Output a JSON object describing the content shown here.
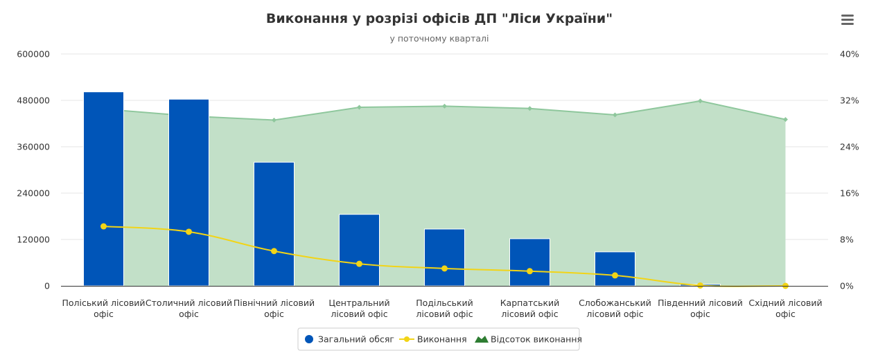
{
  "chart_data": {
    "type": "bar",
    "title": "Виконання у розрізі офісів ДП \"Ліси України\"",
    "subtitle": "у поточному кварталі",
    "categories": [
      [
        "Поліський лісовий",
        "офіс"
      ],
      [
        "Столичний лісовий",
        "офіс"
      ],
      [
        "Північний лісовий",
        "офіс"
      ],
      [
        "Центральний",
        "лісовий офіс"
      ],
      [
        "Подільський",
        "лісовий офіс"
      ],
      [
        "Карпатський",
        "лісовий офіс"
      ],
      [
        "Слобожанський",
        "лісовий офіс"
      ],
      [
        "Південний лісовий",
        "офіс"
      ],
      [
        "Східний лісовий",
        "офіс"
      ]
    ],
    "y_left": {
      "min": 0,
      "max": 600000,
      "ticks": [
        0,
        120000,
        240000,
        360000,
        480000,
        600000
      ],
      "tick_labels": [
        "0",
        "120000",
        "240000",
        "360000",
        "480000",
        "600000"
      ]
    },
    "y_right": {
      "min": 0,
      "max": 40,
      "ticks": [
        0,
        8,
        16,
        24,
        32,
        40
      ],
      "tick_labels": [
        "0%",
        "8%",
        "16%",
        "24%",
        "32%",
        "40%"
      ]
    },
    "grid": true,
    "legend_position": "bottom-center",
    "series": [
      {
        "name": "Загальний обсяг",
        "type": "column",
        "axis": "left",
        "color": "#0055b8",
        "values": [
          502000,
          483000,
          320000,
          185000,
          147000,
          122000,
          88000,
          4000,
          0
        ]
      },
      {
        "name": "Виконання",
        "type": "line",
        "axis": "left",
        "color": "#f2d416",
        "values": [
          154000,
          140000,
          90000,
          57000,
          45000,
          38000,
          27000,
          1000,
          0
        ]
      },
      {
        "name": "Відсоток виконання",
        "type": "area",
        "axis": "right",
        "color": "#8ec79c",
        "fill": "#c2e0c8",
        "legend_color": "#2e7d32",
        "values": [
          30.5,
          29.3,
          28.6,
          30.8,
          31.0,
          30.6,
          29.5,
          31.9,
          28.7
        ]
      }
    ]
  },
  "menu": {
    "icon": "hamburger-icon"
  }
}
